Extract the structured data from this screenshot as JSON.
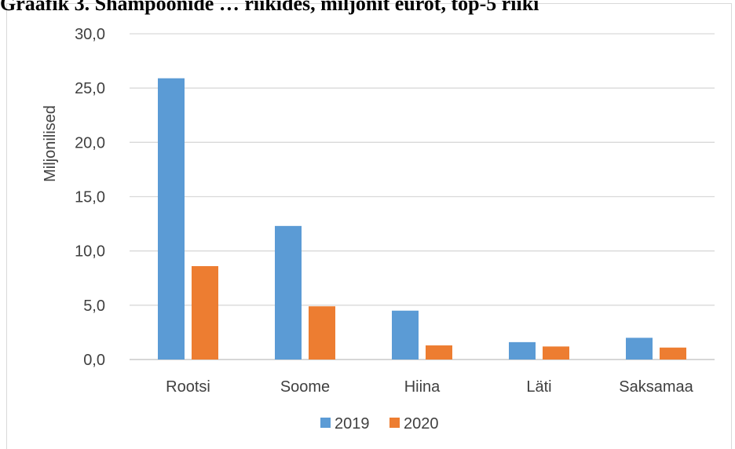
{
  "caption": "Graafik 3. Shampoonide … riikides, miljonit eurot, top-5 riiki",
  "chart_data": {
    "type": "bar",
    "title": "",
    "xlabel": "",
    "ylabel": "Miljonilised",
    "ylim": [
      0,
      30
    ],
    "yticks": [
      "0,0",
      "5,0",
      "10,0",
      "15,0",
      "20,0",
      "25,0",
      "30,0"
    ],
    "grid": true,
    "legend_position": "bottom",
    "categories": [
      "Rootsi",
      "Soome",
      "Hiina",
      "Läti",
      "Saksamaa"
    ],
    "series": [
      {
        "name": "2019",
        "color": "#5b9bd5",
        "values": [
          25.9,
          12.3,
          4.5,
          1.6,
          2.0
        ]
      },
      {
        "name": "2020",
        "color": "#ed7d31",
        "values": [
          8.6,
          4.9,
          1.3,
          1.2,
          1.1
        ]
      }
    ]
  }
}
